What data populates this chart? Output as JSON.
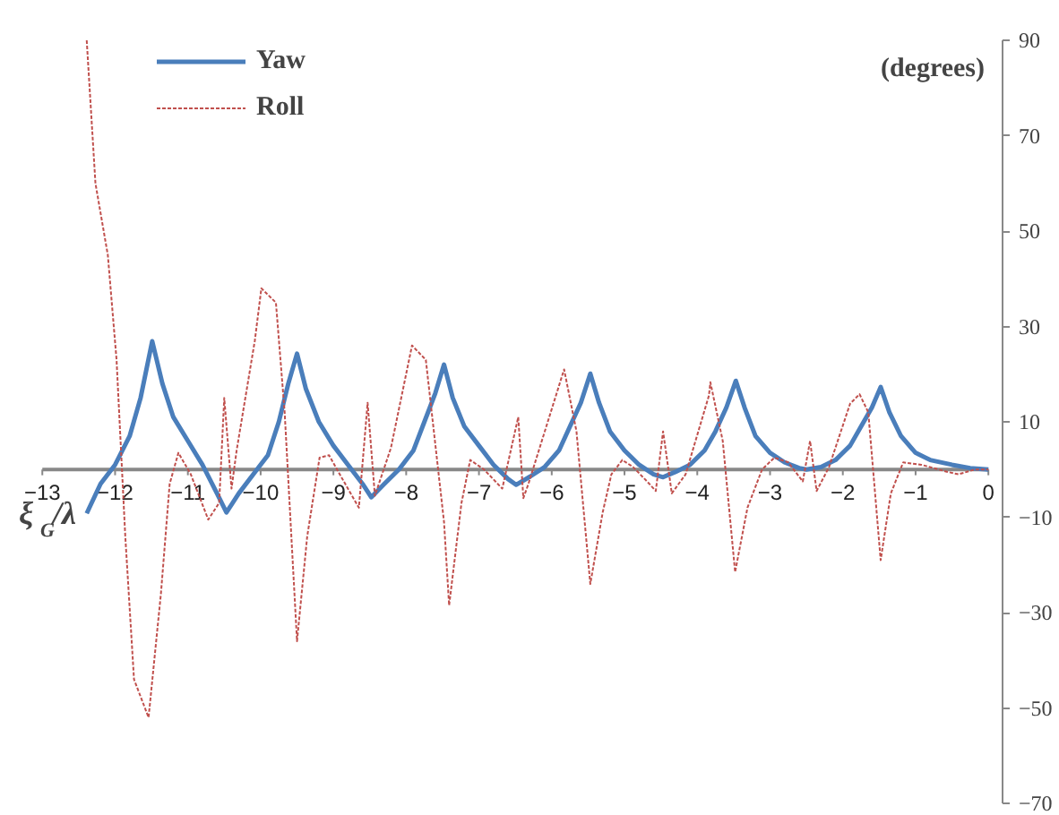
{
  "chart_data": {
    "type": "line",
    "xlabel": "ξ$_{G}$/λ",
    "ylabel": "(degrees)",
    "xlim": [
      -13,
      0
    ],
    "xticks": [
      -13,
      -12,
      -11,
      -10,
      -9,
      -8,
      -7,
      -6,
      -5,
      -4,
      -3,
      -2,
      -1,
      0
    ],
    "ylim": [
      -70,
      90
    ],
    "yticks": [
      90,
      70,
      50,
      30,
      10,
      -10,
      -30,
      -50,
      -70
    ],
    "grid": false,
    "legend": "top left",
    "marker": "none",
    "series": [
      {
        "name": "Yaw",
        "color": "#4a7ebb",
        "line_style": "solid",
        "x": [
          -12.39,
          -12.2,
          -12.0,
          -11.8,
          -11.65,
          -11.49,
          -11.35,
          -11.2,
          -11.0,
          -10.8,
          -10.6,
          -10.47,
          -10.3,
          -10.1,
          -9.9,
          -9.75,
          -9.62,
          -9.5,
          -9.38,
          -9.2,
          -9.0,
          -8.8,
          -8.6,
          -8.48,
          -8.3,
          -8.1,
          -7.9,
          -7.75,
          -7.6,
          -7.48,
          -7.36,
          -7.2,
          -7.0,
          -6.8,
          -6.6,
          -6.49,
          -6.3,
          -6.1,
          -5.9,
          -5.75,
          -5.6,
          -5.47,
          -5.35,
          -5.2,
          -5.0,
          -4.8,
          -4.6,
          -4.47,
          -4.3,
          -4.1,
          -3.9,
          -3.75,
          -3.6,
          -3.47,
          -3.35,
          -3.2,
          -3.0,
          -2.8,
          -2.6,
          -2.5,
          -2.3,
          -2.1,
          -1.9,
          -1.75,
          -1.6,
          -1.48,
          -1.36,
          -1.2,
          -1.0,
          -0.8,
          -0.5,
          -0.25,
          0
        ],
        "values": [
          -9.2,
          -3,
          1,
          7,
          15,
          26.9,
          18,
          11,
          6,
          1,
          -5,
          -9,
          -5,
          -1,
          3,
          10,
          18,
          24.3,
          17,
          10,
          5,
          1,
          -3,
          -5.8,
          -3,
          0,
          4,
          10,
          16,
          22,
          15,
          9,
          5,
          1,
          -2,
          -3.2,
          -1.5,
          0.5,
          4,
          9,
          14,
          20.1,
          14,
          8,
          4,
          1,
          -1,
          -1.6,
          -0.5,
          1,
          4,
          8,
          13,
          18.6,
          13,
          7,
          3.5,
          1.5,
          0.3,
          0,
          0.5,
          2,
          5,
          9,
          13,
          17.3,
          12,
          7,
          3.5,
          2,
          1,
          0.3,
          0
        ]
      },
      {
        "name": "Roll",
        "color": "#c0504d",
        "line_style": "dashed",
        "x": [
          -12.39,
          -12.27,
          -12.1,
          -11.98,
          -11.86,
          -11.74,
          -11.54,
          -11.37,
          -11.25,
          -11.13,
          -10.96,
          -10.72,
          -10.57,
          -10.5,
          -10.4,
          -10.33,
          -10.08,
          -9.99,
          -9.79,
          -9.67,
          -9.5,
          -9.36,
          -9.19,
          -9.06,
          -8.82,
          -8.65,
          -8.53,
          -8.43,
          -8.21,
          -7.92,
          -7.73,
          -7.48,
          -7.41,
          -7.24,
          -7.12,
          -6.93,
          -6.68,
          -6.46,
          -6.39,
          -6.32,
          -5.83,
          -5.66,
          -5.47,
          -5.3,
          -5.18,
          -5.03,
          -4.88,
          -4.69,
          -4.57,
          -4.47,
          -4.35,
          -4.16,
          -3.84,
          -3.82,
          -3.65,
          -3.48,
          -3.31,
          -3.11,
          -2.94,
          -2.75,
          -2.55,
          -2.45,
          -2.36,
          -2.19,
          -1.9,
          -1.77,
          -1.65,
          -1.48,
          -1.34,
          -1.17,
          -0.92,
          -0.56,
          -0.41,
          -0.19,
          0
        ],
        "values": [
          90,
          60,
          45,
          23,
          -14,
          -44,
          -52,
          -26,
          -3,
          3.5,
          -1,
          -10.5,
          -7,
          15,
          -4,
          4,
          27,
          38,
          35,
          12,
          -36,
          -14,
          2.5,
          3,
          -3.5,
          -8,
          14,
          -5.5,
          4.5,
          26,
          23,
          -11,
          -28.5,
          -7,
          2,
          0,
          -4,
          11,
          -6,
          -3,
          21,
          8,
          -24,
          -9,
          -1,
          2,
          0.5,
          -2.5,
          -4.5,
          8,
          -5,
          -1,
          15.5,
          18.3,
          6,
          -21.5,
          -8,
          0,
          2.5,
          1.5,
          -2.5,
          6,
          -4.5,
          0.5,
          13.8,
          15.8,
          12,
          -19,
          -5,
          1.5,
          1,
          -0.5,
          -1,
          0,
          0
        ]
      }
    ]
  }
}
